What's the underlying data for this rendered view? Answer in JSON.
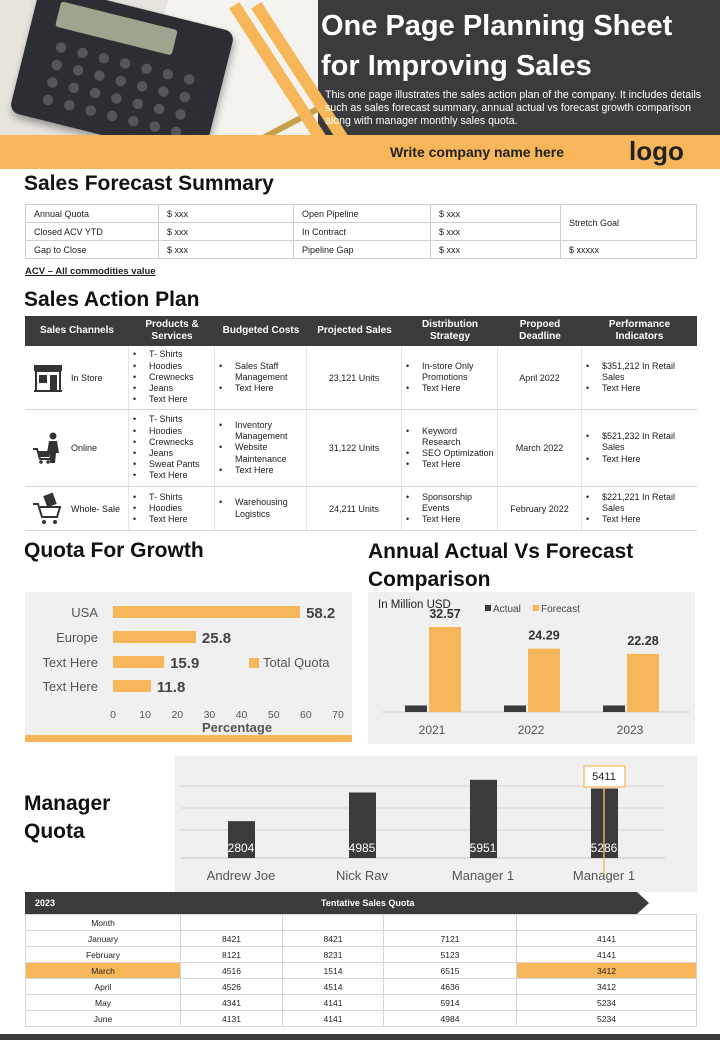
{
  "header": {
    "title": "One Page Planning Sheet for Improving Sales",
    "description": "This one page illustrates the sales action plan of the company. It includes details such as sales forecast summary, annual actual vs forecast growth comparison along with manager monthly sales quota.",
    "company": "Write company  name here",
    "logo": "logo"
  },
  "colors": {
    "accent": "#f7b65a",
    "dark": "#3b3b3d",
    "panel": "#f0f0f0"
  },
  "forecast": {
    "title": "Sales Forecast Summary",
    "rows": [
      [
        "Annual Quota",
        "$ xxx",
        "Open Pipeline",
        "$ xxx"
      ],
      [
        "Closed ACV YTD",
        "$ xxx",
        "In Contract",
        "$ xxx"
      ],
      [
        "Gap to Close",
        "$ xxx",
        "Pipeline Gap",
        "$ xxx"
      ]
    ],
    "stretch_label": "Stretch Goal",
    "stretch_value": "$ xxxxx",
    "note": "ACV – All commodities value"
  },
  "action_plan": {
    "title": "Sales Action Plan",
    "headers": [
      "Sales Channels",
      "Products & Services",
      "Budgeted Costs",
      "Projected Sales",
      "Distribution Strategy",
      "Propoed Deadline",
      "Performance Indicators"
    ],
    "rows": [
      {
        "icon": "store-icon",
        "channel": "In Store",
        "products": [
          "T- Shirts",
          "Hoodies",
          "Crewnecks",
          "Jeans",
          "Text Here"
        ],
        "costs": [
          "Sales Staff Management",
          "Text Here"
        ],
        "projected": "23,121 Units",
        "strategy": [
          "In-store Only Promotions",
          "Text Here"
        ],
        "deadline": "April 2022",
        "indicators": [
          "$351,212 In Retail Sales",
          "Text Here"
        ]
      },
      {
        "icon": "online-shopper-icon",
        "channel": "Online",
        "products": [
          "T- Shirts",
          "Hoodies",
          "Crewnecks",
          "Jeans",
          "Sweat Pants",
          "Text Here"
        ],
        "costs": [
          "Inventory Management",
          "Website Maintenance",
          "Text Here"
        ],
        "projected": "31,122 Units",
        "strategy": [
          "Keyword Research",
          "SEO Optimization",
          "Text Here"
        ],
        "deadline": "March 2022",
        "indicators": [
          "$521,232 In Retail Sales",
          "Text Here"
        ]
      },
      {
        "icon": "wholesale-cart-icon",
        "channel": "Whole- Sale",
        "products": [
          "T- Shirts",
          "Hoodies",
          "Text Here"
        ],
        "costs": [
          "Warehousing Logistics"
        ],
        "projected": "24,211 Units",
        "strategy": [
          "Sponsorship Events",
          "Text Here"
        ],
        "deadline": "February 2022",
        "indicators": [
          "$221,221 In Retail Sales",
          "Text Here"
        ]
      }
    ]
  },
  "sections": {
    "quota_title": "Quota For Growth",
    "annual_title": "Annual Actual  Vs Forecast Comparison",
    "manager_title": "Manager Quota"
  },
  "chart_data": [
    {
      "type": "bar",
      "orientation": "horizontal",
      "title": "",
      "categories": [
        "USA",
        "Europe",
        "Text Here",
        "Text Here"
      ],
      "series": [
        {
          "name": "Total Quota",
          "values": [
            58.2,
            25.8,
            15.9,
            11.8
          ]
        }
      ],
      "xlabel": "Percentage",
      "ylabel": "",
      "xlim": [
        0,
        70
      ],
      "xticks": [
        0,
        10,
        20,
        30,
        40,
        50,
        60,
        70
      ],
      "legend": "right",
      "grid": false
    },
    {
      "type": "bar",
      "title": "In Million USD",
      "categories": [
        "2021",
        "2022",
        "2023"
      ],
      "series": [
        {
          "name": "Actual",
          "values": [
            2.5,
            2.5,
            2.5
          ]
        },
        {
          "name": "Forecast",
          "values": [
            32.57,
            24.29,
            22.28
          ]
        }
      ],
      "data_labels": [
        "32.57",
        "24.29",
        "22.28"
      ],
      "ylim": [
        0,
        40
      ],
      "legend": "top",
      "grid": false
    },
    {
      "type": "bar",
      "title": "",
      "categories": [
        "Andrew Joe",
        "Nick Rav",
        "Manager 1",
        "Manager 1"
      ],
      "series": [
        {
          "values": [
            2804,
            4985,
            5951,
            5286
          ]
        }
      ],
      "callout": "5411",
      "target": 5411,
      "ylim": [
        0,
        7000
      ],
      "grid": true
    }
  ],
  "monthly_quota": {
    "year": "2023",
    "title": "Tentative Sales Quota",
    "month_header": "Month",
    "rows": [
      {
        "month": "January",
        "values": [
          "8421",
          "8421",
          "7121",
          "4141"
        ]
      },
      {
        "month": "February",
        "values": [
          "8121",
          "8231",
          "5123",
          "4141"
        ]
      },
      {
        "month": "March",
        "values": [
          "4516",
          "1514",
          "6515",
          "3412"
        ],
        "highlight": true
      },
      {
        "month": "April",
        "values": [
          "4526",
          "4514",
          "4636",
          "3412"
        ]
      },
      {
        "month": "May",
        "values": [
          "4341",
          "4141",
          "5914",
          "5234"
        ]
      },
      {
        "month": "June",
        "values": [
          "4131",
          "4141",
          "4984",
          "5234"
        ]
      }
    ]
  }
}
